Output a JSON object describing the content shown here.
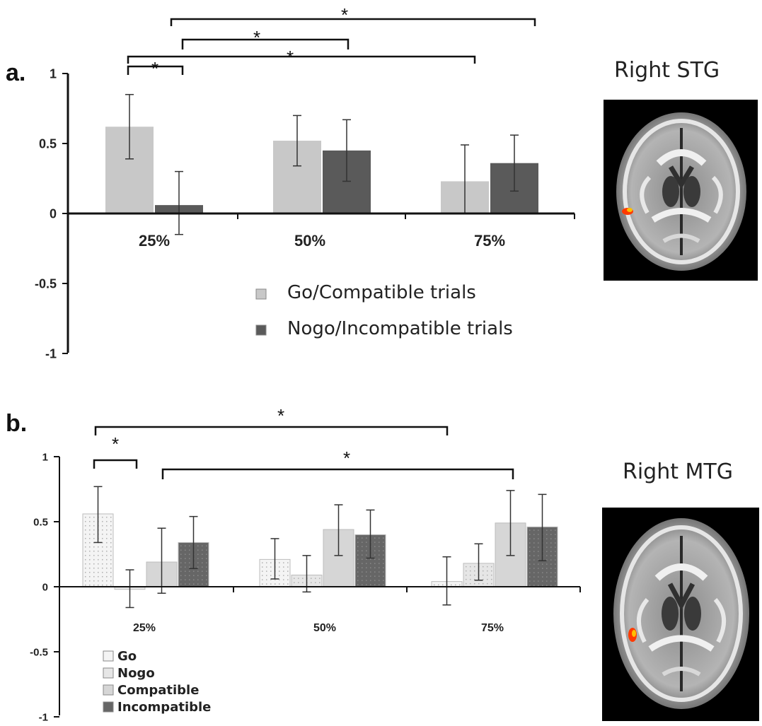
{
  "chart_data": [
    {
      "panel": "a.",
      "type": "bar",
      "region_title": "Right STG",
      "categories": [
        "25%",
        "50%",
        "75%"
      ],
      "yticks": [
        "1",
        "0.5",
        "0",
        "-0.5",
        "-1"
      ],
      "ylim": [
        -1,
        1
      ],
      "series": [
        {
          "name": "Go/Compatible trials",
          "values": [
            0.62,
            0.52,
            0.23
          ],
          "err_low": [
            0.39,
            0.34,
            0.0
          ],
          "err_high": [
            0.85,
            0.7,
            0.49
          ],
          "color": "#c8c8c8"
        },
        {
          "name": "Nogo/Incompatible trials",
          "values": [
            0.06,
            0.45,
            0.36
          ],
          "err_low": [
            -0.15,
            0.23,
            0.16
          ],
          "err_high": [
            0.3,
            0.67,
            0.56
          ],
          "color": "#5a5a5a"
        }
      ],
      "significance": [
        {
          "from": "25%",
          "to": "25%",
          "label": "*"
        },
        {
          "from": "25%",
          "to": "75%",
          "label": "*"
        },
        {
          "from": "25%",
          "to": "50%",
          "label": "*"
        },
        {
          "from": "25%",
          "to": "75%",
          "label": "*"
        }
      ],
      "legend_position": "bottom-center",
      "grid": false
    },
    {
      "panel": "b.",
      "type": "bar",
      "region_title": "Right MTG",
      "categories": [
        "25%",
        "50%",
        "75%"
      ],
      "yticks": [
        "1",
        "0.5",
        "0",
        "-0.5",
        "-1"
      ],
      "ylim": [
        -1,
        1
      ],
      "series": [
        {
          "name": "Go",
          "values": [
            0.56,
            0.21,
            0.04
          ],
          "err_low": [
            0.34,
            0.06,
            -0.14
          ],
          "err_high": [
            0.77,
            0.37,
            0.23
          ],
          "color": "#f4f4f4"
        },
        {
          "name": "Nogo",
          "values": [
            -0.02,
            0.09,
            0.18
          ],
          "err_low": [
            -0.16,
            -0.04,
            0.05
          ],
          "err_high": [
            0.13,
            0.24,
            0.33
          ],
          "color": "#e6e6e6"
        },
        {
          "name": "Compatible",
          "values": [
            0.19,
            0.44,
            0.49
          ],
          "err_low": [
            -0.05,
            0.24,
            0.24
          ],
          "err_high": [
            0.45,
            0.63,
            0.74
          ],
          "color": "#d6d6d6"
        },
        {
          "name": "Incompatible",
          "values": [
            0.34,
            0.4,
            0.46
          ],
          "err_low": [
            0.14,
            0.22,
            0.2
          ],
          "err_high": [
            0.54,
            0.59,
            0.71
          ],
          "color": "#666666"
        }
      ],
      "significance": [
        {
          "from": "25%",
          "to": "25%",
          "label": "*"
        },
        {
          "from": "25%",
          "to": "75%",
          "label": "*"
        },
        {
          "from": "25%",
          "to": "75%",
          "label": "*"
        }
      ],
      "legend_position": "bottom-left",
      "grid": false
    }
  ]
}
